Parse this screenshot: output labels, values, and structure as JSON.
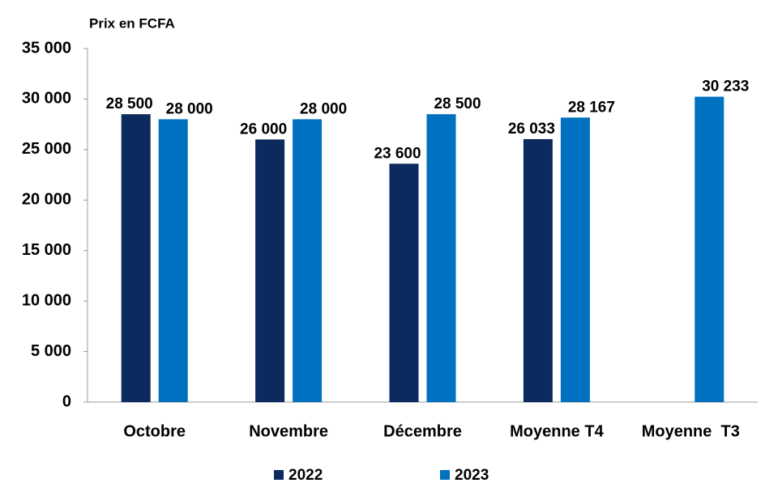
{
  "chart_data": {
    "type": "bar",
    "title": "Prix en FCFA",
    "categories": [
      "Octobre",
      "Novembre",
      "Décembre",
      "Moyenne T4",
      "Moyenne  T3"
    ],
    "series": [
      {
        "name": "2022",
        "color": "#0c2a5e",
        "values": [
          28500,
          26000,
          23600,
          26033,
          null
        ],
        "value_labels": [
          "28 500",
          "26 000",
          "23 600",
          "26 033",
          null
        ]
      },
      {
        "name": "2023",
        "color": "#0070c0",
        "values": [
          28000,
          28000,
          28500,
          28167,
          30233
        ],
        "value_labels": [
          "28 000",
          "28 000",
          "28 500",
          "28 167",
          "30 233"
        ]
      }
    ],
    "ylim": [
      0,
      35000
    ],
    "yticks": [
      0,
      {
        "value": 5000,
        "label": "5 000"
      },
      {
        "value": 10000,
        "label": "10 000"
      },
      {
        "value": 15000,
        "label": "15 000"
      },
      {
        "value": 20000,
        "label": "20 000"
      },
      {
        "value": 25000,
        "label": "25 000"
      },
      {
        "value": 30000,
        "label": "30 000"
      },
      {
        "value": 35000,
        "label": "35 000"
      }
    ],
    "grid": false,
    "legend": "bottom"
  }
}
